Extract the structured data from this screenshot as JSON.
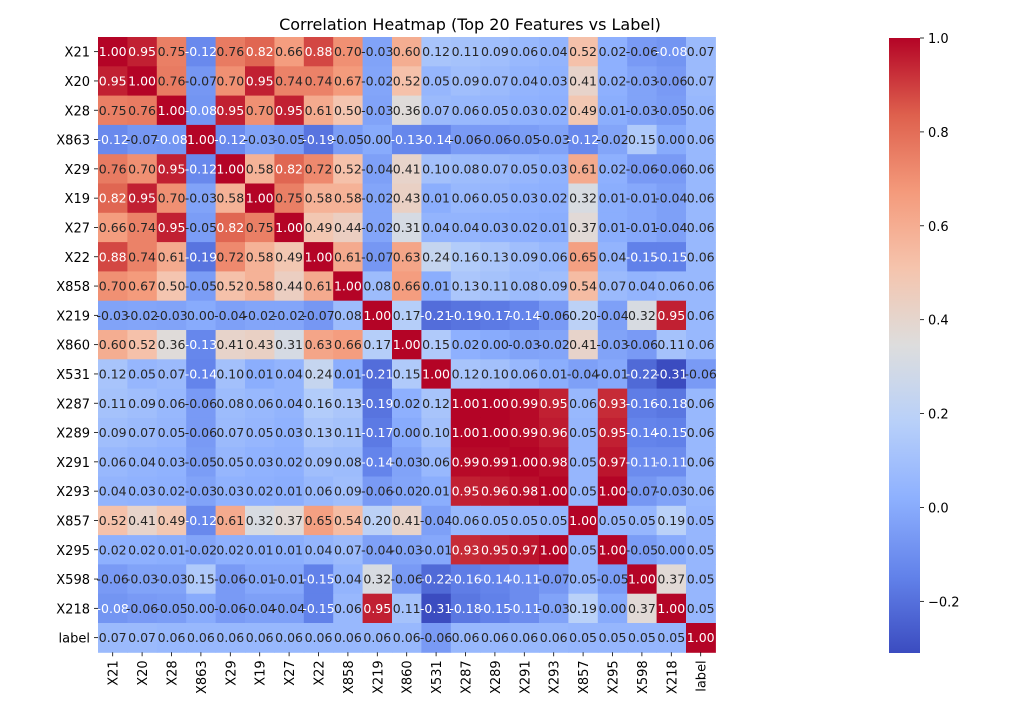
{
  "chart_data": {
    "type": "heatmap",
    "title": "Correlation Heatmap (Top 20 Features vs Label)",
    "xlabel": "",
    "ylabel": "",
    "rows": [
      "X21",
      "X20",
      "X28",
      "X863",
      "X29",
      "X19",
      "X27",
      "X22",
      "X858",
      "X219",
      "X860",
      "X531",
      "X287",
      "X289",
      "X291",
      "X293",
      "X857",
      "X295",
      "X598",
      "X218",
      "label"
    ],
    "cols": [
      "X21",
      "X20",
      "X28",
      "X863",
      "X29",
      "X19",
      "X27",
      "X22",
      "X858",
      "X219",
      "X860",
      "X531",
      "X287",
      "X289",
      "X291",
      "X293",
      "X857",
      "X295",
      "X598",
      "X218",
      "label"
    ],
    "values": [
      [
        1.0,
        0.95,
        0.75,
        -0.12,
        0.76,
        0.82,
        0.66,
        0.88,
        0.7,
        -0.03,
        0.6,
        0.12,
        0.11,
        0.09,
        0.06,
        0.04,
        0.52,
        0.02,
        -0.06,
        -0.08,
        0.07
      ],
      [
        0.95,
        1.0,
        0.76,
        -0.07,
        0.7,
        0.95,
        0.74,
        0.74,
        0.67,
        -0.02,
        0.52,
        0.05,
        0.09,
        0.07,
        0.04,
        0.03,
        0.41,
        0.02,
        -0.03,
        -0.06,
        0.07
      ],
      [
        0.75,
        0.76,
        1.0,
        -0.08,
        0.95,
        0.7,
        0.95,
        0.61,
        0.5,
        -0.03,
        0.36,
        0.07,
        0.06,
        0.05,
        0.03,
        0.02,
        0.49,
        0.01,
        -0.03,
        -0.05,
        0.06
      ],
      [
        -0.12,
        -0.07,
        -0.08,
        1.0,
        -0.12,
        -0.03,
        -0.05,
        -0.19,
        -0.05,
        0.0,
        -0.13,
        -0.14,
        -0.06,
        -0.06,
        -0.05,
        -0.03,
        -0.12,
        -0.02,
        0.15,
        0.0,
        0.06
      ],
      [
        0.76,
        0.7,
        0.95,
        -0.12,
        1.0,
        0.58,
        0.82,
        0.72,
        0.52,
        -0.04,
        0.41,
        0.1,
        0.08,
        0.07,
        0.05,
        0.03,
        0.61,
        0.02,
        -0.06,
        -0.06,
        0.06
      ],
      [
        0.82,
        0.95,
        0.7,
        -0.03,
        0.58,
        1.0,
        0.75,
        0.58,
        0.58,
        -0.02,
        0.43,
        0.01,
        0.06,
        0.05,
        0.03,
        0.02,
        0.32,
        0.01,
        -0.01,
        -0.04,
        0.06
      ],
      [
        0.66,
        0.74,
        0.95,
        -0.05,
        0.82,
        0.75,
        1.0,
        0.49,
        0.44,
        -0.02,
        0.31,
        0.04,
        0.04,
        0.03,
        0.02,
        0.01,
        0.37,
        0.01,
        -0.01,
        -0.04,
        0.06
      ],
      [
        0.88,
        0.74,
        0.61,
        -0.19,
        0.72,
        0.58,
        0.49,
        1.0,
        0.61,
        -0.07,
        0.63,
        0.24,
        0.16,
        0.13,
        0.09,
        0.06,
        0.65,
        0.04,
        -0.15,
        -0.15,
        0.06
      ],
      [
        0.7,
        0.67,
        0.5,
        -0.05,
        0.52,
        0.58,
        0.44,
        0.61,
        1.0,
        0.08,
        0.66,
        0.01,
        0.13,
        0.11,
        0.08,
        0.09,
        0.54,
        0.07,
        0.04,
        0.06,
        0.06
      ],
      [
        -0.03,
        -0.02,
        -0.03,
        0.0,
        -0.04,
        -0.02,
        -0.02,
        -0.07,
        0.08,
        1.0,
        0.17,
        -0.21,
        -0.19,
        -0.17,
        -0.14,
        -0.06,
        0.2,
        -0.04,
        0.32,
        0.95,
        0.06
      ],
      [
        0.6,
        0.52,
        0.36,
        -0.13,
        0.41,
        0.43,
        0.31,
        0.63,
        0.66,
        0.17,
        1.0,
        0.15,
        0.02,
        0.0,
        -0.03,
        -0.02,
        0.41,
        -0.03,
        -0.06,
        0.11,
        0.06
      ],
      [
        0.12,
        0.05,
        0.07,
        -0.14,
        0.1,
        0.01,
        0.04,
        0.24,
        0.01,
        -0.21,
        0.15,
        1.0,
        0.12,
        0.1,
        0.06,
        0.01,
        -0.04,
        -0.01,
        -0.22,
        -0.31,
        -0.06
      ],
      [
        0.11,
        0.09,
        0.06,
        -0.06,
        0.08,
        0.06,
        0.04,
        0.16,
        0.13,
        -0.19,
        0.02,
        0.12,
        1.0,
        1.0,
        0.99,
        0.95,
        0.06,
        0.93,
        -0.16,
        -0.18,
        0.06
      ],
      [
        0.09,
        0.07,
        0.05,
        -0.06,
        0.07,
        0.05,
        0.03,
        0.13,
        0.11,
        -0.17,
        0.0,
        0.1,
        1.0,
        1.0,
        0.99,
        0.96,
        0.05,
        0.95,
        -0.14,
        -0.15,
        0.06
      ],
      [
        0.06,
        0.04,
        0.03,
        -0.05,
        0.05,
        0.03,
        0.02,
        0.09,
        0.08,
        -0.14,
        -0.03,
        0.06,
        0.99,
        0.99,
        1.0,
        0.98,
        0.05,
        0.97,
        -0.11,
        -0.11,
        0.06
      ],
      [
        0.04,
        0.03,
        0.02,
        -0.03,
        0.03,
        0.02,
        0.01,
        0.06,
        0.09,
        -0.06,
        -0.02,
        0.01,
        0.95,
        0.96,
        0.98,
        1.0,
        0.05,
        1.0,
        -0.07,
        -0.03,
        0.06
      ],
      [
        0.52,
        0.41,
        0.49,
        -0.12,
        0.61,
        0.32,
        0.37,
        0.65,
        0.54,
        0.2,
        0.41,
        -0.04,
        0.06,
        0.05,
        0.05,
        0.05,
        1.0,
        0.05,
        0.05,
        0.19,
        0.05
      ],
      [
        0.02,
        0.02,
        0.01,
        -0.02,
        0.02,
        0.01,
        0.01,
        0.04,
        0.07,
        -0.04,
        -0.03,
        -0.01,
        0.93,
        0.95,
        0.97,
        1.0,
        0.05,
        1.0,
        -0.05,
        -0.0,
        0.05
      ],
      [
        -0.06,
        -0.03,
        -0.03,
        0.15,
        -0.06,
        -0.01,
        -0.01,
        -0.15,
        0.04,
        0.32,
        -0.06,
        -0.22,
        -0.16,
        -0.14,
        -0.11,
        -0.07,
        0.05,
        -0.05,
        1.0,
        0.37,
        0.05
      ],
      [
        -0.08,
        -0.06,
        -0.05,
        0.0,
        -0.06,
        -0.04,
        -0.04,
        -0.15,
        0.06,
        0.95,
        0.11,
        -0.31,
        -0.18,
        -0.15,
        -0.11,
        -0.03,
        0.19,
        -0.0,
        0.37,
        1.0,
        0.05
      ],
      [
        0.07,
        0.07,
        0.06,
        0.06,
        0.06,
        0.06,
        0.06,
        0.06,
        0.06,
        0.06,
        0.06,
        -0.06,
        0.06,
        0.06,
        0.06,
        0.06,
        0.05,
        0.05,
        0.05,
        0.05,
        1.0
      ]
    ],
    "value_format": "2 decimals",
    "colormap": "coolwarm",
    "vmin": -0.31,
    "vmax": 1.0,
    "colorbar": {
      "ticks": [
        1.0,
        0.8,
        0.6,
        0.4,
        0.2,
        0.0,
        -0.2
      ],
      "tick_labels": [
        "1.0",
        "0.8",
        "0.6",
        "0.4",
        "0.2",
        "0.0",
        "−0.2"
      ]
    },
    "grid": false,
    "legend": "colorbar-right"
  }
}
